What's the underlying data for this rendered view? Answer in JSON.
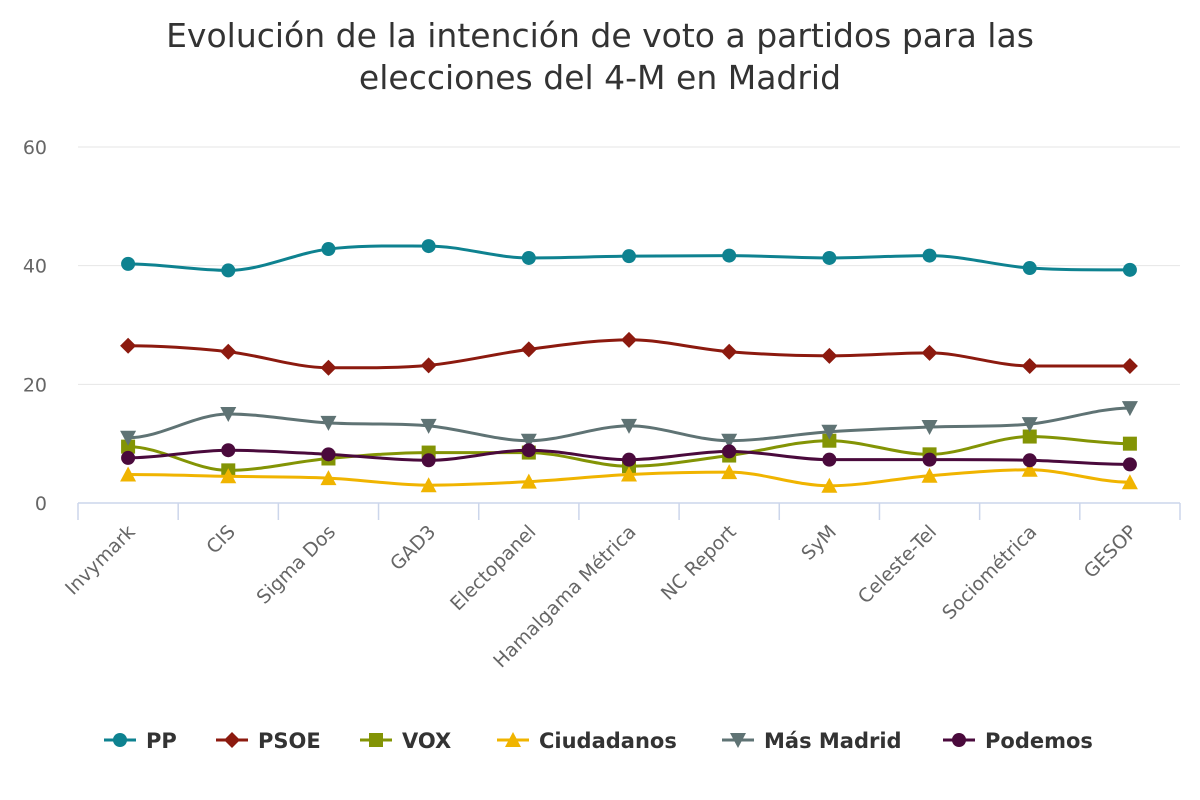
{
  "chart_data": {
    "type": "line",
    "title": "Evolución de la intención de voto a partidos para las elecciones del 4-M en Madrid",
    "title_lines": [
      "Evolución de la intención de voto a partidos para las",
      "elecciones del 4-M en Madrid"
    ],
    "xlabel": "",
    "ylabel": "",
    "ylim": [
      0,
      60
    ],
    "yticks": [
      0,
      20,
      40,
      60
    ],
    "grid": true,
    "legend_position": "bottom",
    "categories": [
      "Invymark",
      "CIS",
      "Sigma Dos",
      "GAD3",
      "Electopanel",
      "Hamalgama Métrica",
      "NC Report",
      "SyM",
      "Celeste-Tel",
      "Sociométrica",
      "GESOP"
    ],
    "series": [
      {
        "name": "PP",
        "color": "#0e8290",
        "marker": "circle",
        "values": [
          40.3,
          39.2,
          42.8,
          43.3,
          41.3,
          41.6,
          41.7,
          41.3,
          41.7,
          39.6,
          39.3
        ]
      },
      {
        "name": "PSOE",
        "color": "#8c1a0f",
        "marker": "diamond",
        "values": [
          26.5,
          25.5,
          22.8,
          23.2,
          25.9,
          27.5,
          25.5,
          24.8,
          25.3,
          23.1,
          23.1
        ]
      },
      {
        "name": "VOX",
        "color": "#839405",
        "marker": "square",
        "values": [
          9.5,
          5.5,
          7.5,
          8.5,
          8.5,
          6.2,
          8.0,
          10.5,
          8.2,
          11.2,
          10.0
        ]
      },
      {
        "name": "Ciudadanos",
        "color": "#f0b400",
        "marker": "triangle",
        "values": [
          4.8,
          4.5,
          4.2,
          3.0,
          3.6,
          4.8,
          5.2,
          2.9,
          4.6,
          5.6,
          3.5
        ]
      },
      {
        "name": "Más Madrid",
        "color": "#5f7374",
        "marker": "triangle-down",
        "values": [
          11.0,
          15.0,
          13.5,
          13.0,
          10.5,
          13.0,
          10.5,
          12.0,
          12.8,
          13.3,
          16.0
        ]
      },
      {
        "name": "Podemos",
        "color": "#4a0a3c",
        "marker": "circle",
        "values": [
          7.6,
          8.9,
          8.2,
          7.2,
          8.9,
          7.3,
          8.7,
          7.3,
          7.3,
          7.2,
          6.5
        ]
      }
    ]
  }
}
